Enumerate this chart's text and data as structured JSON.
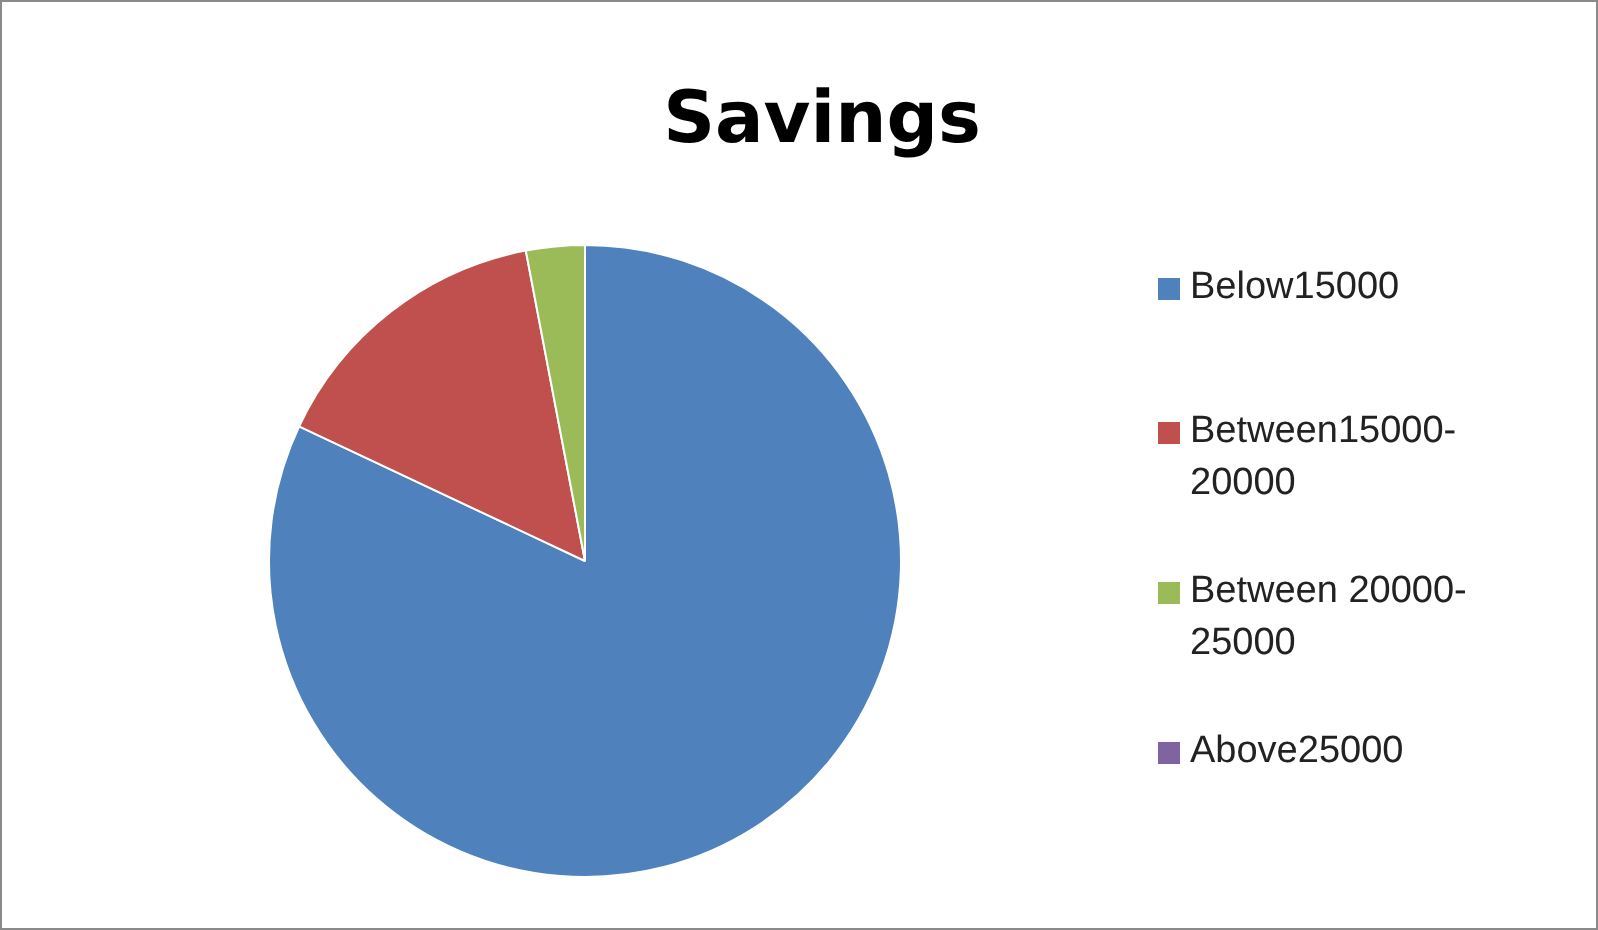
{
  "chart_data": {
    "type": "pie",
    "title": "Savings",
    "categories": [
      "Below15000",
      "Between15000-20000",
      "Between 20000-25000",
      "Above25000"
    ],
    "values": [
      82,
      15,
      3,
      0
    ],
    "colors": [
      "#4f81bd",
      "#c0504d",
      "#9bbb59",
      "#8064a2"
    ],
    "legend": "right"
  }
}
